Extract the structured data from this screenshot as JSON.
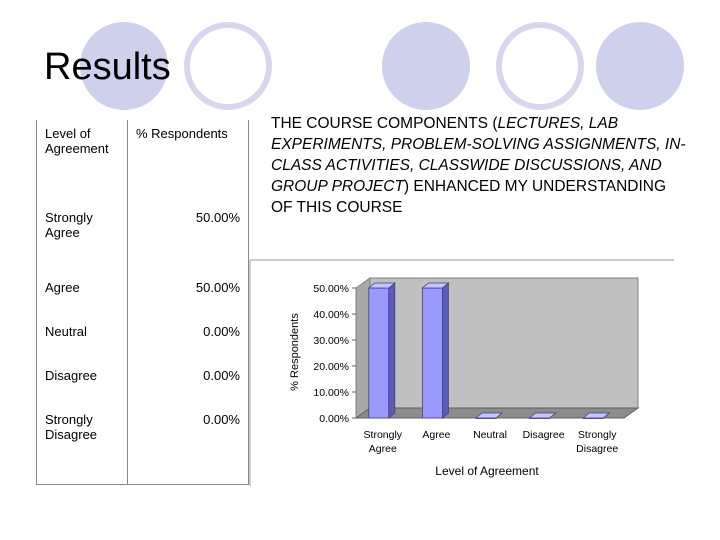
{
  "slide": {
    "title": "Results",
    "caption_parts": [
      {
        "text": "THE COURSE COMPONENTS (",
        "italic": false
      },
      {
        "text": "LECTURES, LAB EXPERIMENTS, PROBLEM-SOLVING ASSIGNMENTS, IN-CLASS ACTIVITIES, CLASSWIDE DISCUSSIONS, AND GROUP PROJECT",
        "italic": true
      },
      {
        "text": ") ENHANCED MY UNDERSTANDING OF THIS COURSE",
        "italic": false
      }
    ]
  },
  "table": {
    "headers": [
      "Level of Agreement",
      "% Respondents"
    ],
    "rows": [
      {
        "level": "Strongly Agree",
        "percent": "50.00%"
      },
      {
        "level": "Agree",
        "percent": "50.00%"
      },
      {
        "level": "Neutral",
        "percent": "0.00%"
      },
      {
        "level": "Disagree",
        "percent": "0.00%"
      },
      {
        "level": "Strongly Disagree",
        "percent": "0.00%"
      }
    ]
  },
  "chart_data": {
    "type": "bar",
    "categories": [
      "Strongly Agree",
      "Agree",
      "Neutral",
      "Disagree",
      "Strongly Disagree"
    ],
    "values": [
      50,
      50,
      0,
      0,
      0
    ],
    "title": "",
    "xlabel": "Level of Agreement",
    "ylabel": "% Respondents",
    "ylim": [
      0,
      50
    ],
    "yticks": [
      "0.00%",
      "10.00%",
      "20.00%",
      "30.00%",
      "40.00%",
      "50.00%"
    ],
    "style": "3d",
    "grid": false,
    "legend": "none",
    "colors": {
      "bar": "#9999ff",
      "bar_side": "#5c5cb8",
      "bar_top": "#c4c4ff",
      "plot_back": "#c0c0c0",
      "plot_floor": "#8c8c8c"
    }
  }
}
